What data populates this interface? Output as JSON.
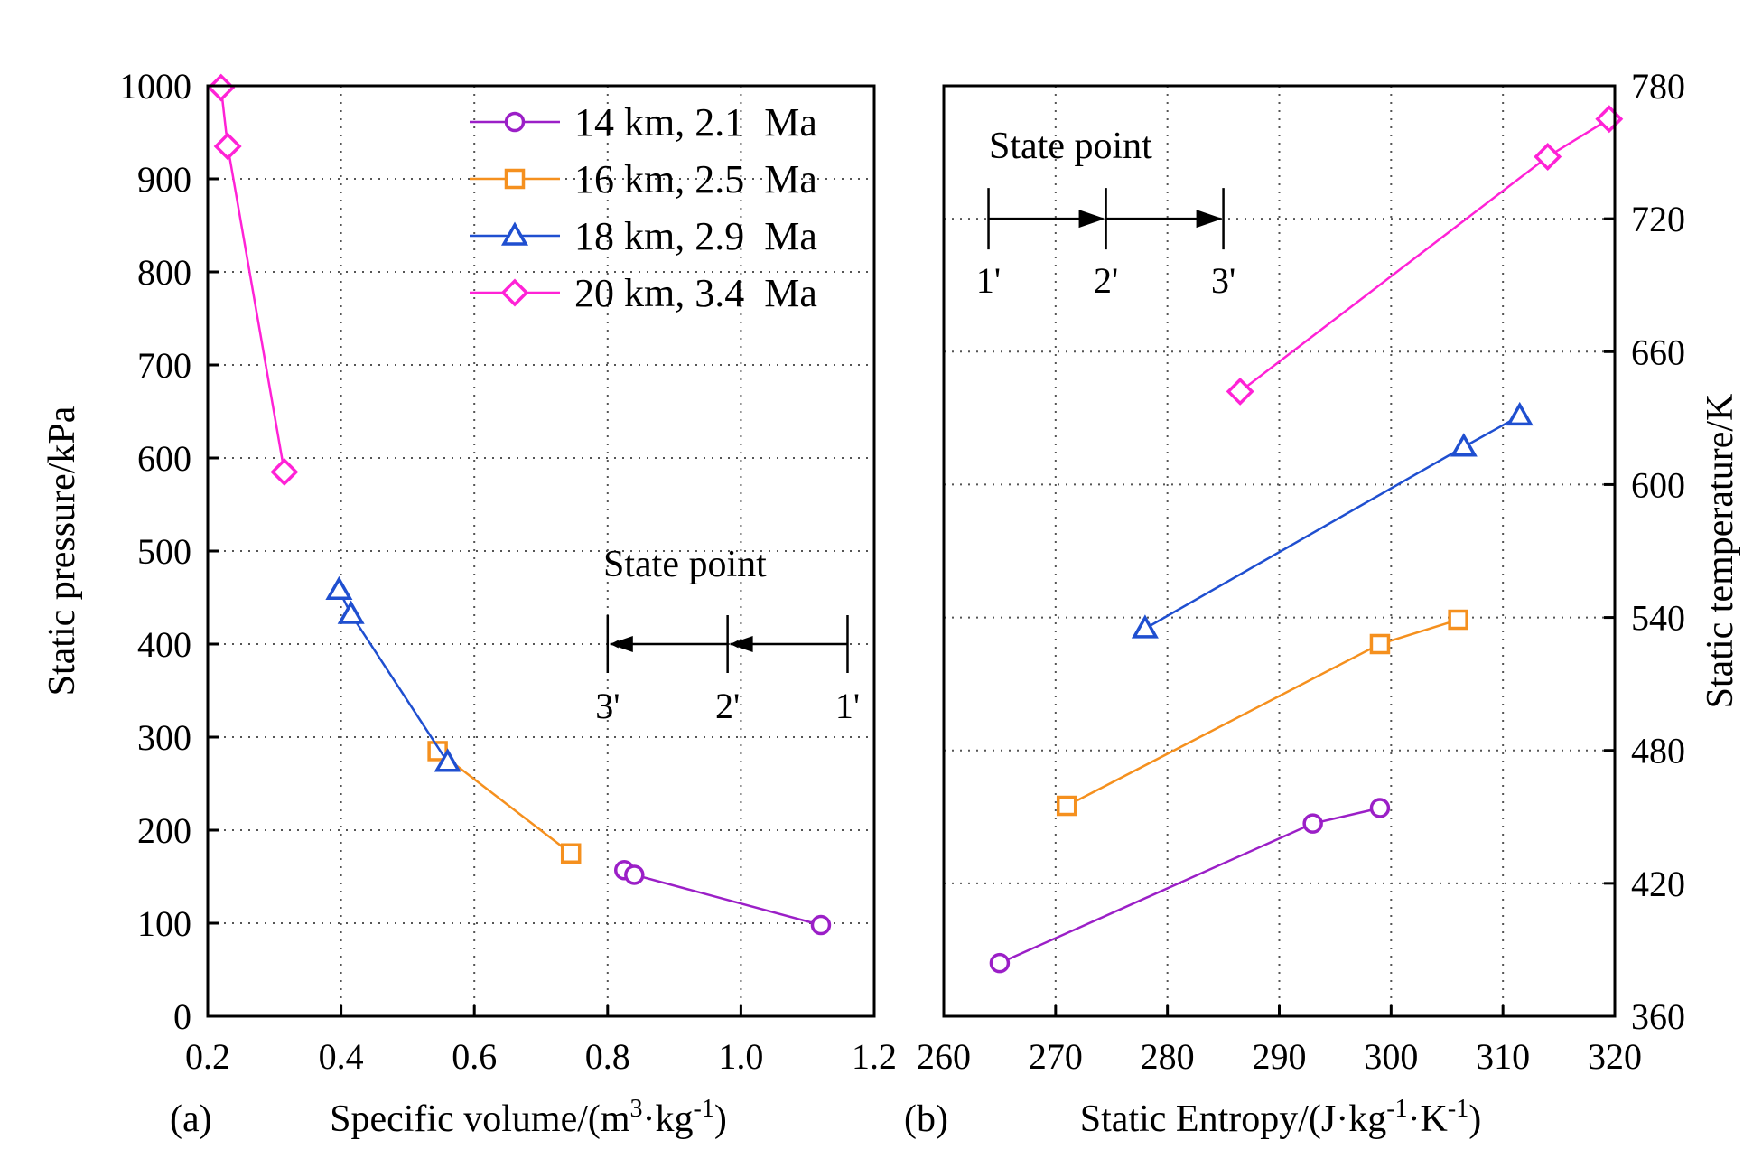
{
  "chart_data": [
    {
      "type": "line",
      "panel_label": "(a)",
      "xlabel": {
        "main": "Specific volume/(m",
        "sup1": "3",
        "mid": "·kg",
        "sup2": "-1",
        "end": ")"
      },
      "ylabel": "Static pressure/kPa",
      "xlim": [
        0.2,
        1.2
      ],
      "ylim": [
        0,
        1000
      ],
      "xticks": [
        0.2,
        0.4,
        0.6,
        0.8,
        1.0,
        1.2
      ],
      "xtick_labels": [
        "0.2",
        "0.4",
        "0.6",
        "0.8",
        "1.0",
        "1.2"
      ],
      "yticks": [
        0,
        100,
        200,
        300,
        400,
        500,
        600,
        700,
        800,
        900,
        1000
      ],
      "ytick_labels": [
        "0",
        "100",
        "200",
        "300",
        "400",
        "500",
        "600",
        "700",
        "800",
        "900",
        "1000"
      ],
      "grid": true,
      "legend_position": "top-right",
      "series": [
        {
          "name": "14 km, 2.1  Ma",
          "color": "#9b1fc7",
          "marker": "circle",
          "points": [
            [
              0.825,
              157
            ],
            [
              0.84,
              152
            ],
            [
              1.12,
              98
            ]
          ]
        },
        {
          "name": "16 km, 2.5  Ma",
          "color": "#f5901e",
          "marker": "square",
          "points": [
            [
              0.545,
              285
            ],
            [
              0.745,
              175
            ]
          ]
        },
        {
          "name": "18 km, 2.9  Ma",
          "color": "#1f4fd0",
          "marker": "triangle",
          "points": [
            [
              0.397,
              458
            ],
            [
              0.415,
              432
            ],
            [
              0.56,
              273
            ]
          ]
        },
        {
          "name": "20 km, 3.4  Ma",
          "color": "#ff22d6",
          "marker": "diamond",
          "points": [
            [
              0.22,
              998
            ],
            [
              0.23,
              935
            ],
            [
              0.315,
              585
            ]
          ]
        }
      ],
      "annotation": {
        "title": "State point",
        "direction": "right-to-left",
        "points": [
          {
            "label": "3'",
            "x": 0.8
          },
          {
            "label": "2'",
            "x": 0.98
          },
          {
            "label": "1'",
            "x": 1.16
          }
        ],
        "y": 400
      }
    },
    {
      "type": "line",
      "panel_label": "(b)",
      "xlabel": {
        "main": "Static Entropy/(J·kg",
        "sup1": "-1",
        "mid": "·K",
        "sup2": "-1",
        "end": ")"
      },
      "ylabel": "Static temperature/K",
      "xlim": [
        260,
        320
      ],
      "ylim": [
        360,
        780
      ],
      "xticks": [
        260,
        270,
        280,
        290,
        300,
        310,
        320
      ],
      "xtick_labels": [
        "260",
        "270",
        "280",
        "290",
        "300",
        "310",
        "320"
      ],
      "yticks": [
        360,
        420,
        480,
        540,
        600,
        660,
        720,
        780
      ],
      "ytick_labels": [
        "360",
        "420",
        "480",
        "540",
        "600",
        "660",
        "720",
        "780"
      ],
      "y_axis_side": "right",
      "grid": true,
      "series": [
        {
          "name": "14 km, 2.1  Ma",
          "color": "#9b1fc7",
          "marker": "circle",
          "points": [
            [
              265,
              384
            ],
            [
              293,
              447
            ],
            [
              299,
              454
            ]
          ]
        },
        {
          "name": "16 km, 2.5  Ma",
          "color": "#f5901e",
          "marker": "square",
          "points": [
            [
              271,
              455
            ],
            [
              299,
              528
            ],
            [
              306,
              539
            ]
          ]
        },
        {
          "name": "18 km, 2.9  Ma",
          "color": "#1f4fd0",
          "marker": "triangle",
          "points": [
            [
              278,
              535
            ],
            [
              306.5,
              617
            ],
            [
              311.5,
              631
            ]
          ]
        },
        {
          "name": "20 km, 3.4  Ma",
          "color": "#ff22d6",
          "marker": "diamond",
          "points": [
            [
              286.5,
              642
            ],
            [
              314,
              748
            ],
            [
              319.5,
              765
            ]
          ]
        }
      ],
      "annotation": {
        "title": "State point",
        "direction": "left-to-right",
        "points": [
          {
            "label": "1'",
            "x": 264
          },
          {
            "label": "2'",
            "x": 274.5
          },
          {
            "label": "3'",
            "x": 285
          }
        ],
        "y": 720
      }
    }
  ]
}
